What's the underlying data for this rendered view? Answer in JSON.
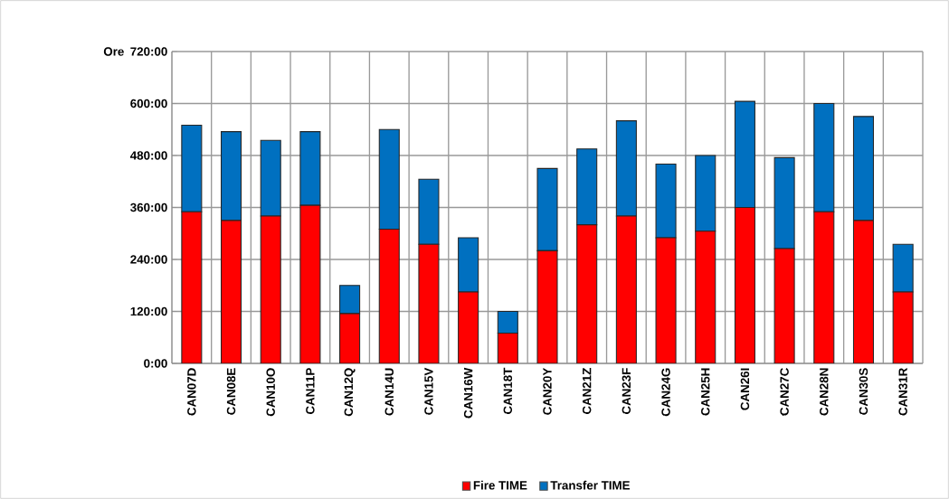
{
  "chart_data": {
    "type": "bar",
    "stacked": true,
    "ylabel": "Ore",
    "categories": [
      "CAN07D",
      "CAN08E",
      "CAN10O",
      "CAN11P",
      "CAN12Q",
      "CAN14U",
      "CAN15V",
      "CAN16W",
      "CAN18T",
      "CAN20Y",
      "CAN21Z",
      "CAN23F",
      "CAN24G",
      "CAN25H",
      "CAN26I",
      "CAN27C",
      "CAN28N",
      "CAN30S",
      "CAN31R"
    ],
    "series": [
      {
        "name": "Fire TIME",
        "color": "#ff0000",
        "values": [
          350,
          330,
          340,
          365,
          115,
          310,
          275,
          165,
          70,
          260,
          320,
          340,
          290,
          305,
          360,
          265,
          350,
          330,
          165
        ]
      },
      {
        "name": "Transfer TIME",
        "color": "#0070c0",
        "values": [
          200,
          205,
          175,
          170,
          65,
          230,
          150,
          125,
          50,
          190,
          175,
          220,
          170,
          175,
          245,
          210,
          250,
          240,
          110
        ]
      }
    ],
    "ylim": [
      0,
      720
    ],
    "yticks": [
      {
        "value": 0,
        "label": "0:00"
      },
      {
        "value": 120,
        "label": "120:00"
      },
      {
        "value": 240,
        "label": "240:00"
      },
      {
        "value": 360,
        "label": "360:00"
      },
      {
        "value": 480,
        "label": "480:00"
      },
      {
        "value": 600,
        "label": "600:00"
      },
      {
        "value": 720,
        "label": "720:00"
      }
    ],
    "grid": true,
    "legend": "bottom"
  }
}
